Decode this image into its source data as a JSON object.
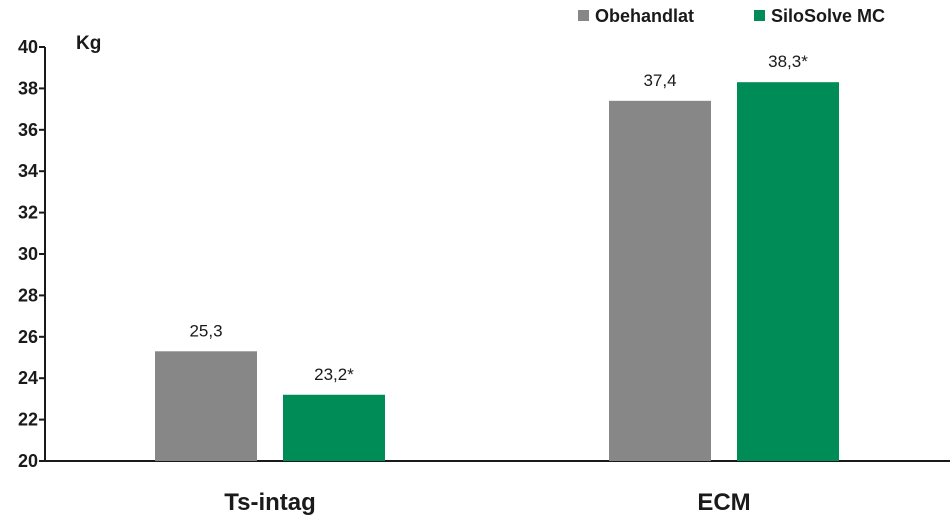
{
  "chart_data": {
    "type": "bar",
    "unit_label": "Kg",
    "categories": [
      "Ts-intag",
      "ECM"
    ],
    "ylim": [
      20,
      40
    ],
    "yticks": [
      20,
      22,
      24,
      26,
      28,
      30,
      32,
      34,
      36,
      38,
      40
    ],
    "grid": false,
    "legend_position": "top-right",
    "series": [
      {
        "name": "Obehandlat",
        "color": "#878787",
        "values": [
          25.3,
          37.4
        ],
        "labels": [
          "25,3",
          "37,4"
        ]
      },
      {
        "name": "SiloSolve MC",
        "color": "#008c57",
        "values": [
          23.2,
          38.3
        ],
        "labels": [
          "23,2*",
          "38,3*"
        ]
      }
    ]
  }
}
